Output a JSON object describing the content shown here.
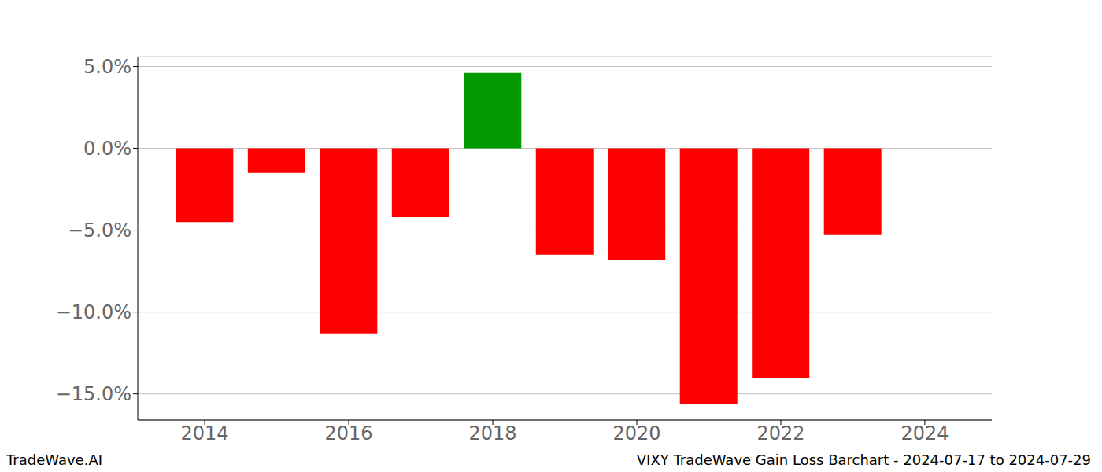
{
  "chart_data": {
    "type": "bar",
    "title": "VIXY TradeWave Gain Loss Barchart - 2024-07-17 to 2024-07-29",
    "annotations": [
      "TradeWave.AI"
    ],
    "x": [
      2014,
      2015,
      2016,
      2017,
      2018,
      2019,
      2020,
      2021,
      2022,
      2023
    ],
    "values": [
      -4.5,
      -1.5,
      -11.3,
      -4.2,
      4.6,
      -6.5,
      -6.8,
      -15.6,
      -14.0,
      -5.3
    ],
    "colors": [
      "#ff0000",
      "#ff0000",
      "#ff0000",
      "#ff0000",
      "#009900",
      "#ff0000",
      "#ff0000",
      "#ff0000",
      "#ff0000",
      "#ff0000"
    ],
    "xlim": [
      2013.07,
      2024.93
    ],
    "xticks": [
      2014,
      2016,
      2018,
      2020,
      2022,
      2024
    ],
    "ylim": [
      -16.6,
      5.6
    ],
    "yticks": [
      {
        "value": 5,
        "label": "5.0%"
      },
      {
        "value": 0,
        "label": "0.0%"
      },
      {
        "value": -5,
        "label": "−5.0%"
      },
      {
        "value": -10,
        "label": "−10.0%"
      },
      {
        "value": -15,
        "label": "−15.0%"
      }
    ],
    "grid": true
  }
}
